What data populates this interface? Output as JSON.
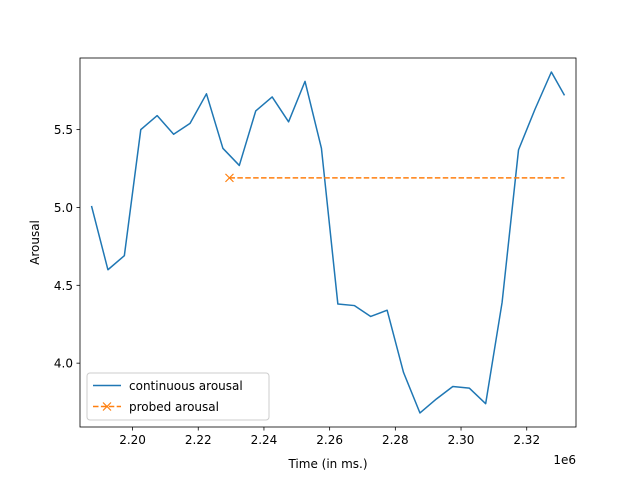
{
  "chart_data": {
    "type": "line",
    "title": "",
    "xlabel": "Time (in ms.)",
    "ylabel": "Arousal",
    "x_offset_label": "1e6",
    "xlim": [
      2.184,
      2.335
    ],
    "ylim": [
      3.59,
      5.96
    ],
    "x_ticks": [
      2.2,
      2.22,
      2.24,
      2.26,
      2.28,
      2.3,
      2.32
    ],
    "x_tick_labels": [
      "2.20",
      "2.22",
      "2.24",
      "2.26",
      "2.28",
      "2.30",
      "2.32"
    ],
    "y_ticks": [
      4.0,
      4.5,
      5.0,
      5.5
    ],
    "y_tick_labels": [
      "4.0",
      "4.5",
      "5.0",
      "5.5"
    ],
    "grid": false,
    "legend_position": "lower-left",
    "series": [
      {
        "name": "continuous arousal",
        "color": "#1f77b4",
        "style": "solid",
        "marker": "none",
        "x": [
          2.1875,
          2.1925,
          2.1975,
          2.2025,
          2.2075,
          2.2125,
          2.2175,
          2.2225,
          2.2275,
          2.2325,
          2.2375,
          2.2425,
          2.2475,
          2.2525,
          2.2575,
          2.2625,
          2.2675,
          2.2725,
          2.2775,
          2.2825,
          2.2875,
          2.2925,
          2.2975,
          2.3025,
          2.3075,
          2.3125,
          2.3175,
          2.3225,
          2.3275,
          2.3315
        ],
        "values": [
          5.01,
          4.6,
          4.69,
          5.5,
          5.59,
          5.47,
          5.54,
          5.73,
          5.38,
          5.27,
          5.62,
          5.71,
          5.55,
          5.81,
          5.38,
          4.38,
          4.37,
          4.3,
          4.34,
          3.94,
          3.68,
          3.77,
          3.85,
          3.84,
          3.74,
          4.39,
          5.37,
          5.63,
          5.87,
          5.72
        ]
      },
      {
        "name": "probed arousal",
        "color": "#ff7f0e",
        "style": "dashed",
        "marker": "x",
        "x": [
          2.2295,
          2.3315
        ],
        "values": [
          5.19,
          5.19
        ],
        "marker_indices": [
          0
        ]
      }
    ]
  }
}
